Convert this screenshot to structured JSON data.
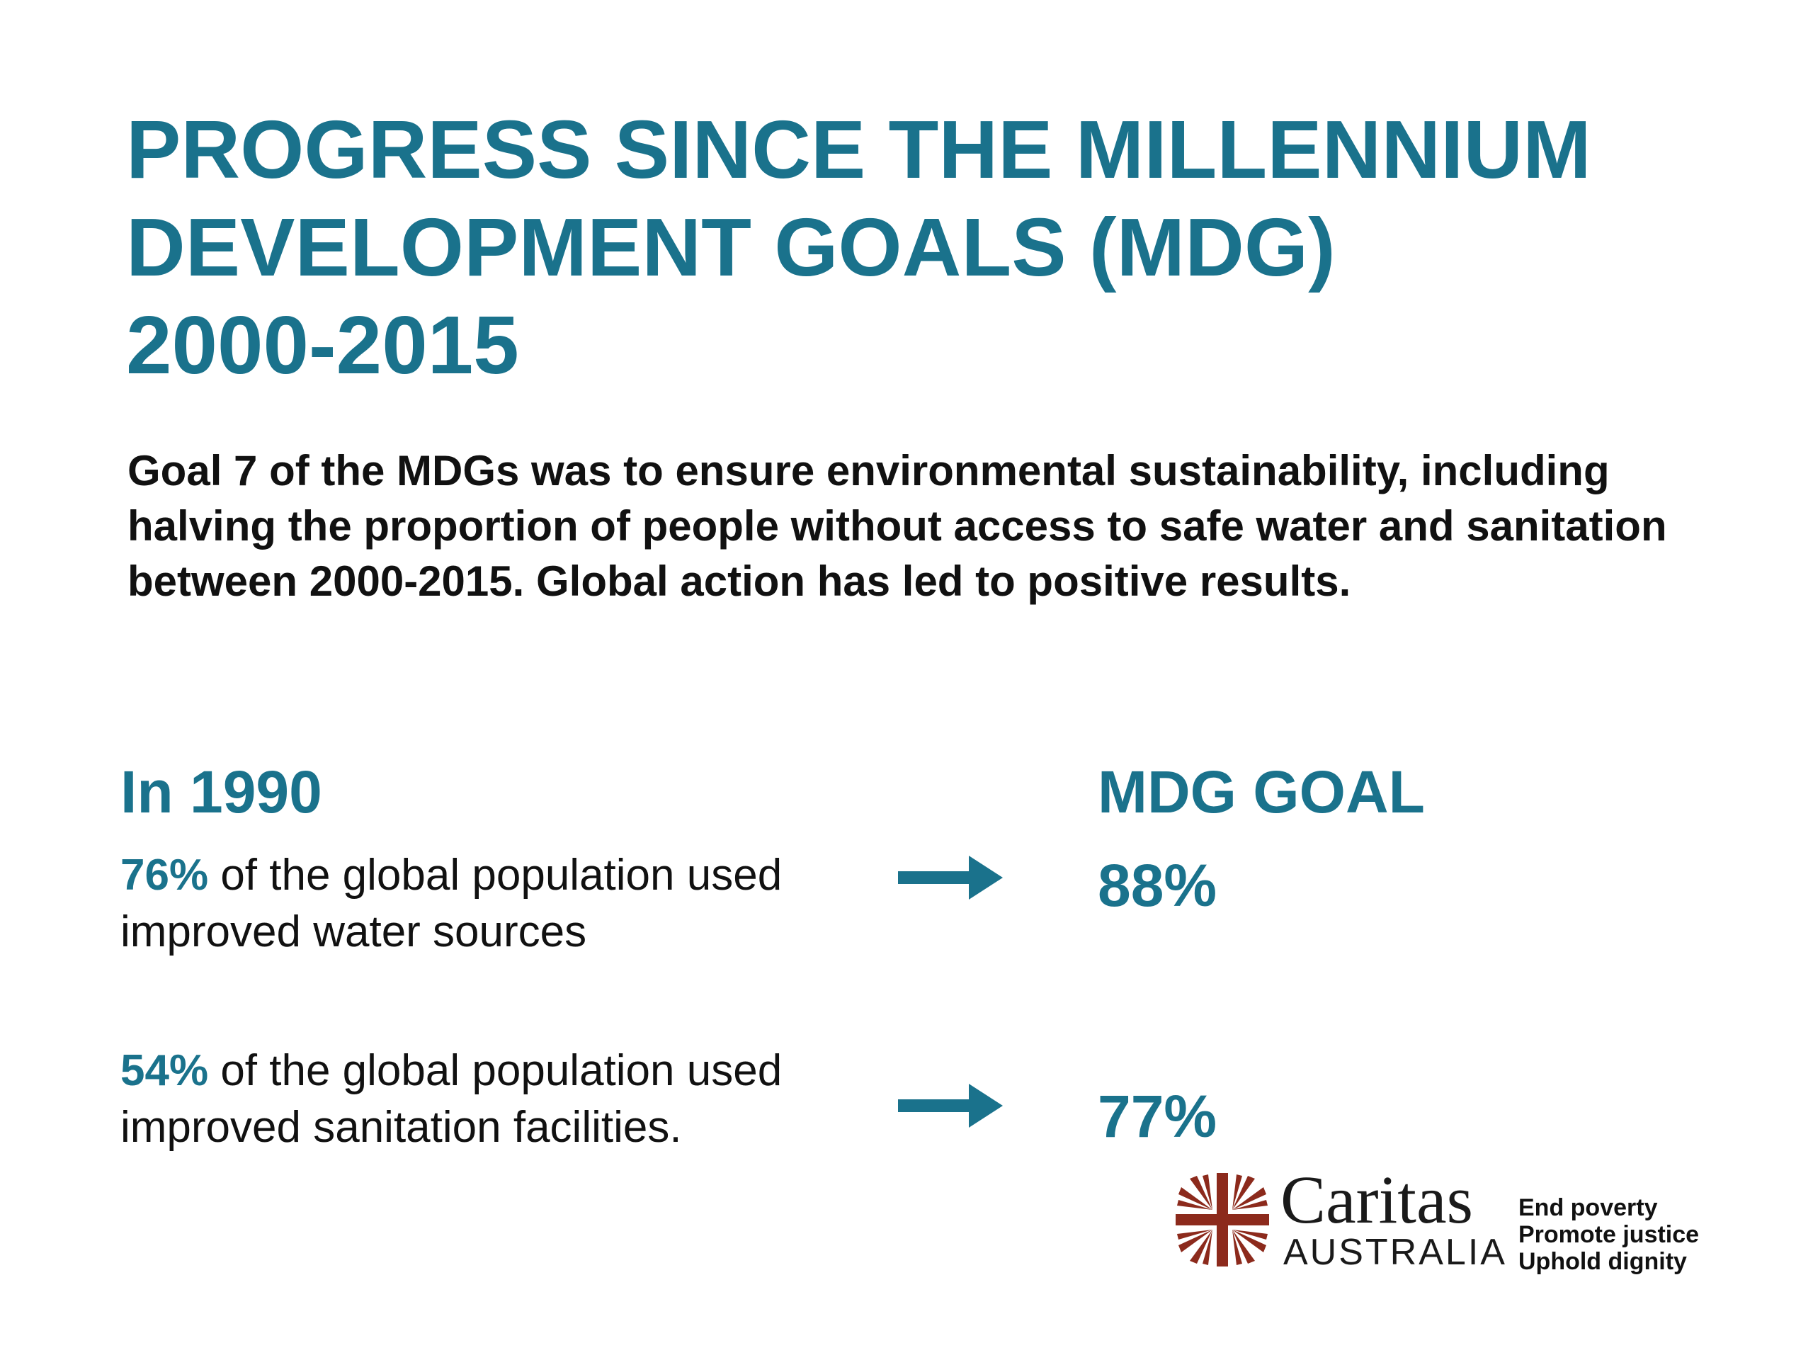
{
  "slide": {
    "title_lines": [
      "PROGRESS SINCE THE MILLENNIUM",
      "DEVELOPMENT GOALS (MDG)",
      "2000-2015"
    ],
    "intro": "Goal 7 of the MDGs was to ensure environmental sustainability, including halving the proportion of people without access to safe water and sanitation between 2000-2015. Global action has led to positive results.",
    "left_heading": "In 1990",
    "right_heading": "MDG GOAL",
    "rows": [
      {
        "percent": "76%",
        "text": "of the global population used improved water sources",
        "goal": "88%",
        "arrow_icon": "right-arrow-icon"
      },
      {
        "percent": "54%",
        "text": "of the global population used improved sanitation facilities.",
        "goal": "77%",
        "arrow_icon": "right-arrow-icon"
      }
    ],
    "logo": {
      "wordmark": "Caritas",
      "country": "AUSTRALIA",
      "icon": "caritas-flame-cross-icon",
      "tagline": [
        "End poverty",
        "Promote justice",
        "Uphold dignity"
      ]
    },
    "colors": {
      "accent": "#1a728c",
      "text": "#111111",
      "logo_red": "#8c2a1c",
      "background": "#ffffff"
    }
  }
}
